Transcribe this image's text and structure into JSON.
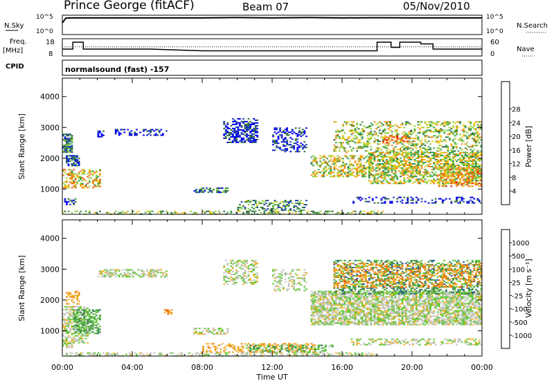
{
  "header": {
    "station": "Prince George (fitACF)",
    "beam": "Beam 07",
    "date": "05/Nov/2010"
  },
  "panels": {
    "nsky_label": "N.Sky",
    "nsky_ticks": [
      "10^5",
      "10^0"
    ],
    "nsearch_label": "N.Search",
    "nsearch_ticks": [
      "10^5",
      "10^0"
    ],
    "freq_label": "Freq.",
    "freq_unit": "[MHz]",
    "freq_ticks": [
      "18",
      "8"
    ],
    "nave_label": "Nave",
    "nave_ticks": [
      "60",
      "0"
    ],
    "cpid_label": "CPID",
    "cpid_text": "normalsound (fast) -157"
  },
  "colors": {
    "power": [
      "#0000ee",
      "#1f3fb0",
      "#2f6e3a",
      "#3a9a4a",
      "#8cd03c",
      "#f0c81e",
      "#f08c14",
      "#f05a0a",
      "#e61414"
    ],
    "velocity": [
      "#1e3cc8",
      "#2e5aa8",
      "#3c8c4a",
      "#64c83c",
      "#c8c8c0",
      "#f0b428",
      "#f08c14",
      "#f05a0a",
      "#e61414"
    ]
  },
  "chart_data": [
    {
      "type": "line",
      "series": [
        {
          "x": [
            0,
            0.2,
            0.5,
            2,
            5,
            8,
            10,
            12,
            14,
            16,
            18,
            20,
            22,
            24
          ],
          "y": [
            0.6,
            0.85,
            0.86,
            0.86,
            0.86,
            0.86,
            0.88,
            0.86,
            0.88,
            0.86,
            0.87,
            0.86,
            0.86,
            0.86
          ]
        }
      ],
      "ylim": [
        0,
        1
      ],
      "xlim": [
        0,
        24
      ]
    },
    {
      "type": "line",
      "series": [
        {
          "x": [
            0,
            0.6,
            0.6,
            1.2,
            1.2,
            2.5,
            5,
            8,
            12,
            16,
            18,
            18,
            18.8,
            18.8,
            19.3,
            19.3,
            20.5,
            20.5,
            21.2,
            21.2,
            24
          ],
          "y": [
            12,
            12,
            16,
            16,
            12,
            12,
            12,
            11,
            11,
            11,
            11,
            16,
            16,
            13,
            13,
            16,
            16,
            15,
            15,
            12,
            12
          ]
        },
        {
          "x": [
            0,
            24
          ],
          "y": [
            13.3,
            13.3
          ]
        }
      ],
      "ylim": [
        8,
        18
      ],
      "xlim": [
        0,
        24
      ]
    },
    {
      "type": "heatmap",
      "ylabel": "Slant Range [km]",
      "colorbar_label": "Power [dB]",
      "colorbar_ticks": [
        "4",
        "8",
        "12",
        "16",
        "20",
        "24",
        "28"
      ],
      "y_ticks": [
        "1000",
        "2000",
        "3000",
        "4000"
      ],
      "xlim": [
        0,
        24
      ],
      "ylim": [
        180,
        4600
      ],
      "blobs": [
        [
          0.0,
          2.2,
          1050,
          1650,
          0.62,
          0.5
        ],
        [
          0.0,
          0.6,
          2200,
          2800,
          0.3,
          0.8
        ],
        [
          0.2,
          1.0,
          1750,
          2100,
          0.2,
          0.7
        ],
        [
          0.1,
          0.8,
          500,
          700,
          0.15,
          0.6
        ],
        [
          2.0,
          2.4,
          2700,
          2900,
          0.1,
          0.5
        ],
        [
          3.0,
          6.0,
          2750,
          2950,
          0.1,
          0.4
        ],
        [
          7.5,
          9.5,
          900,
          1050,
          0.25,
          0.6
        ],
        [
          10.0,
          14.0,
          300,
          650,
          0.35,
          0.4
        ],
        [
          0.0,
          18.5,
          200,
          300,
          0.45,
          0.35
        ],
        [
          9.2,
          11.2,
          2500,
          3300,
          0.1,
          0.55
        ],
        [
          12.0,
          14.0,
          2200,
          3000,
          0.1,
          0.35
        ],
        [
          14.2,
          17.8,
          1400,
          2100,
          0.55,
          0.45
        ],
        [
          15.5,
          24.0,
          2200,
          3200,
          0.5,
          0.35
        ],
        [
          17.5,
          24.0,
          1700,
          2200,
          0.55,
          0.6
        ],
        [
          17.5,
          24.0,
          1200,
          1700,
          0.55,
          0.55
        ],
        [
          21.5,
          24.0,
          1100,
          1700,
          0.7,
          0.5
        ],
        [
          18.3,
          19.8,
          2500,
          2750,
          0.8,
          0.4
        ],
        [
          16.5,
          24.0,
          550,
          750,
          0.1,
          0.3
        ]
      ]
    },
    {
      "type": "heatmap",
      "ylabel": "Slant Range [km]",
      "colorbar_label": "Velocity [m s⁻¹]",
      "colorbar_ticks": [
        "-1000",
        "-500",
        "-100",
        "-25",
        "25",
        "100",
        "500",
        "1000"
      ],
      "y_ticks": [
        "1000",
        "2000",
        "3000",
        "4000"
      ],
      "xlim": [
        0,
        24
      ],
      "ylim": [
        180,
        4600
      ],
      "blobs": [
        [
          0.0,
          1.5,
          600,
          1800,
          0.48,
          0.55
        ],
        [
          0.7,
          2.2,
          900,
          1700,
          0.35,
          0.55
        ],
        [
          0.2,
          1.0,
          1800,
          2300,
          0.66,
          0.45
        ],
        [
          0.0,
          0.6,
          450,
          650,
          0.48,
          0.5
        ],
        [
          7.5,
          9.5,
          900,
          1100,
          0.48,
          0.5
        ],
        [
          9.2,
          11.2,
          2500,
          3300,
          0.48,
          0.45
        ],
        [
          12.0,
          14.0,
          2300,
          3000,
          0.48,
          0.35
        ],
        [
          14.2,
          24.0,
          1200,
          2300,
          0.48,
          0.75
        ],
        [
          8.0,
          14.5,
          300,
          600,
          0.66,
          0.4
        ],
        [
          10.5,
          15.5,
          300,
          550,
          0.35,
          0.4
        ],
        [
          0.0,
          18.0,
          200,
          300,
          0.48,
          0.4
        ],
        [
          15.5,
          24.0,
          2200,
          3300,
          0.3,
          0.4
        ],
        [
          15.5,
          24.0,
          2400,
          3200,
          0.7,
          0.35
        ],
        [
          2.0,
          6.0,
          2750,
          3000,
          0.48,
          0.5
        ],
        [
          5.8,
          6.2,
          1550,
          1700,
          0.7,
          0.6
        ],
        [
          16.5,
          24.0,
          550,
          750,
          0.48,
          0.45
        ]
      ]
    }
  ],
  "x_ticks": [
    "00:00",
    "04:00",
    "08:00",
    "12:00",
    "16:00",
    "20:00",
    "00:00"
  ],
  "xlabel": "Time UT"
}
